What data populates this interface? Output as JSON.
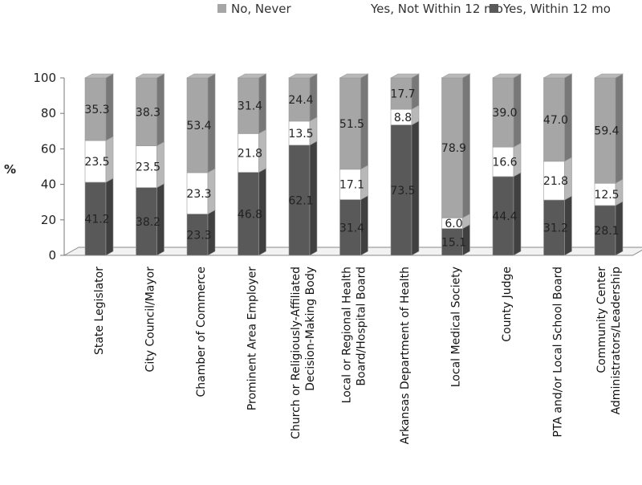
{
  "chart_data": {
    "type": "bar",
    "stacked": true,
    "style": "3d",
    "title": "",
    "xlabel": "",
    "ylabel": "%",
    "ylim": [
      0,
      100
    ],
    "yticks": [
      "0",
      "20",
      "40",
      "60",
      "80",
      "100"
    ],
    "legend_position": "top",
    "grid": false,
    "categories": [
      [
        "State Legislator"
      ],
      [
        "City Council/Mayor"
      ],
      [
        "Chamber of Commerce"
      ],
      [
        "Prominent Area Employer"
      ],
      [
        "Church or Religiously-Affiliated",
        "Decision-Making Body"
      ],
      [
        "Local or Regional Health",
        "Board/Hospital Board"
      ],
      [
        "Arkansas Department of Health"
      ],
      [
        "Local Medical Society"
      ],
      [
        "County Judge"
      ],
      [
        "PTA and/or Local School Board"
      ],
      [
        "Community Center",
        "Administrators/Leadership"
      ]
    ],
    "series": [
      {
        "name": "Yes, Within 12 mo",
        "color": "#595959",
        "values": [
          41.2,
          38.2,
          23.3,
          46.8,
          62.1,
          31.4,
          73.5,
          15.1,
          44.4,
          31.2,
          28.1
        ],
        "labels": [
          "41.2",
          "38.2",
          "23.3",
          "46.8",
          "62.1",
          "31.4",
          "73.5",
          "15.1",
          "44.4",
          "31.2",
          "28.1"
        ]
      },
      {
        "name": "Yes, Not Within 12 mo",
        "color": "#ffffff",
        "values": [
          23.5,
          23.5,
          23.3,
          21.8,
          13.5,
          17.1,
          8.8,
          6.0,
          16.6,
          21.8,
          12.5
        ],
        "labels": [
          "23.5",
          "23.5",
          "23.3",
          "21.8",
          "13.5",
          "17.1",
          "8.8",
          "6.0",
          "16.6",
          "21.8",
          "12.5"
        ]
      },
      {
        "name": "No, Never",
        "color": "#a6a6a6",
        "values": [
          35.3,
          38.3,
          53.4,
          31.4,
          24.4,
          51.5,
          17.7,
          78.9,
          39.0,
          47.0,
          59.4
        ],
        "labels": [
          "35.3",
          "38.3",
          "53.4",
          "31.4",
          "24.4",
          "51.5",
          "17.7",
          "78.9",
          "39.0",
          "47.0",
          "59.4"
        ]
      }
    ],
    "legend_order": [
      "No, Never",
      "Yes, Not Within 12 mo",
      "Yes, Within 12 mo"
    ]
  }
}
